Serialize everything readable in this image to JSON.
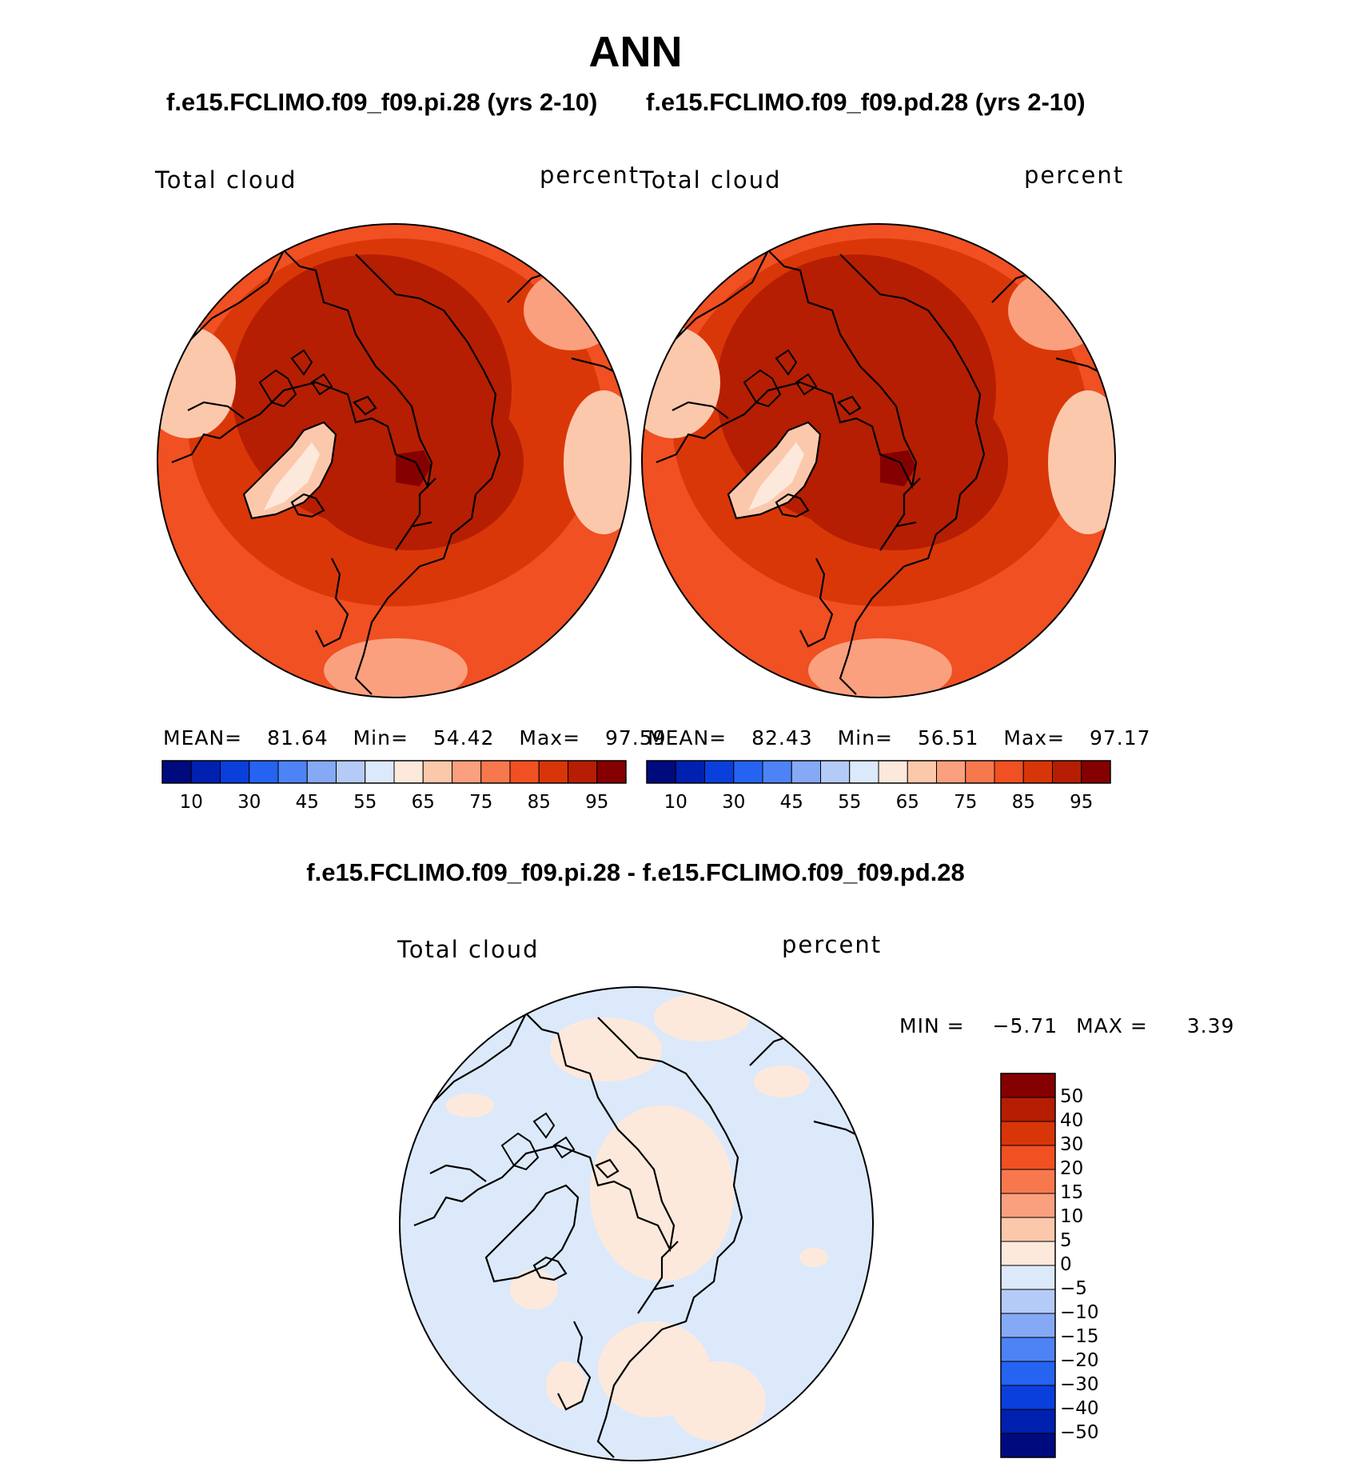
{
  "header": {
    "title": "ANN",
    "case_left": "f.e15.FCLIMO.f09_f09.pi.28 (yrs 2-10)",
    "case_right": "f.e15.FCLIMO.f09_f09.pd.28 (yrs 2-10)",
    "diff_title": "f.e15.FCLIMO.f09_f09.pi.28 - f.e15.FCLIMO.f09_f09.pd.28"
  },
  "panels": [
    {
      "variable": "Total cloud",
      "units": "percent",
      "stats": {
        "mean_label": "MEAN=",
        "mean": "81.64",
        "min_label": "Min=",
        "min": "54.42",
        "max_label": "Max=",
        "max": "97.59"
      }
    },
    {
      "variable": "Total cloud",
      "units": "percent",
      "stats": {
        "mean_label": "MEAN=",
        "mean": "82.43",
        "min_label": "Min=",
        "min": "56.51",
        "max_label": "Max=",
        "max": "97.17"
      }
    }
  ],
  "diff_panel": {
    "variable": "Total cloud",
    "units": "percent",
    "min_label": "MIN =",
    "min": "−5.71",
    "max_label": "MAX =",
    "max": "3.39"
  },
  "colorbar_abs": {
    "colors": [
      "#000a7f",
      "#0020b0",
      "#0a3fdc",
      "#2563f0",
      "#4d83f5",
      "#86a9f5",
      "#b4cbf7",
      "#dce9fa",
      "#fde9dc",
      "#fcc8ac",
      "#fba07e",
      "#f8784e",
      "#f05022",
      "#d83608",
      "#b51e02",
      "#850000"
    ],
    "tick_labels": [
      "10",
      "30",
      "45",
      "55",
      "65",
      "75",
      "85",
      "95"
    ]
  },
  "colorbar_diff": {
    "colors": [
      "#850000",
      "#b51e02",
      "#d83608",
      "#f05022",
      "#f8784e",
      "#fba07e",
      "#fcc8ac",
      "#fde9dc",
      "#dce9fa",
      "#b4cbf7",
      "#86a9f5",
      "#4d83f5",
      "#2563f0",
      "#0a3fdc",
      "#0020b0",
      "#000a7f"
    ],
    "tick_labels": [
      "50",
      "40",
      "30",
      "20",
      "15",
      "10",
      "5",
      "0",
      "−5",
      "−10",
      "−15",
      "−20",
      "−30",
      "−40",
      "−50"
    ]
  },
  "map_palette": {
    "ocean_high": "#d83608",
    "ocean_mid": "#f05022",
    "arctic_core": "#b51e02",
    "arctic_max": "#850000",
    "land_low": "#fde9dc",
    "land_mid": "#fcc8ac",
    "diff_neg": "#dce9fa",
    "diff_pos": "#fde9dc"
  }
}
